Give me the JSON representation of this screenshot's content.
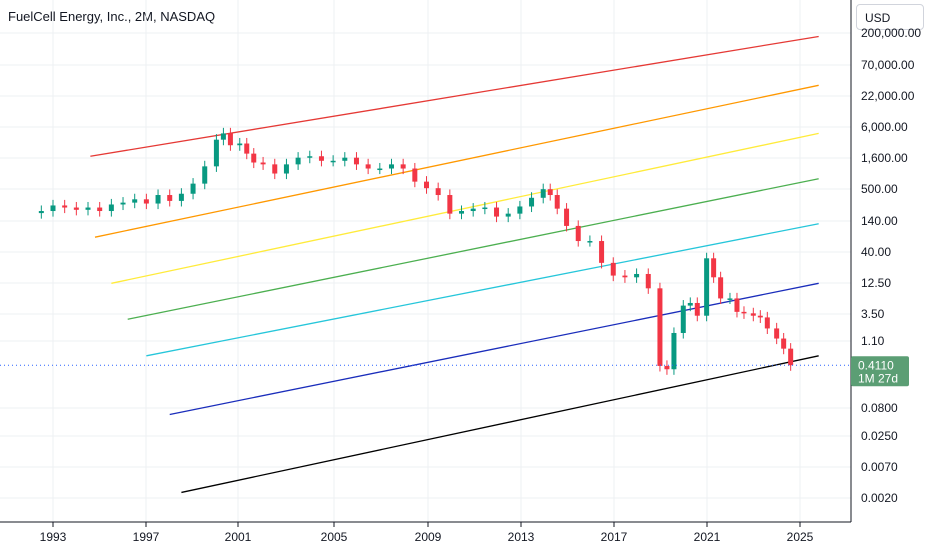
{
  "header": {
    "symbol_title": "FuelCell Energy, Inc., 2M, NASDAQ",
    "currency_label": "USD"
  },
  "colors": {
    "up": "#089981",
    "down": "#f23645",
    "candle_body_dark": "#6d1f1f",
    "last_price_tag": "#5b9e74",
    "last_price_line": "#2962ff",
    "grid": "#eef0f3",
    "axis_line": "#131722"
  },
  "chart_data": {
    "type": "candlestick",
    "scale": "log",
    "x_axis": {
      "tick_labels": [
        "1993",
        "1997",
        "2001",
        "2005",
        "2009",
        "2013",
        "2017",
        "2021",
        "2025"
      ],
      "range": [
        1991.3,
        2027.1
      ]
    },
    "y_axis": {
      "tick_labels": [
        "200,000.00",
        "70,000.00",
        "22,000.00",
        "6,000.00",
        "1,600.00",
        "500.00",
        "140.00",
        "40.00",
        "12.50",
        "3.50",
        "1.10",
        "0.0800",
        "0.0250",
        "0.0070",
        "0.0020"
      ],
      "tick_values": [
        200000,
        70000,
        22000,
        6000,
        1600,
        500,
        140,
        40,
        12.5,
        3.5,
        1.1,
        0.08,
        0.025,
        0.007,
        0.002
      ]
    },
    "last_price": {
      "value": 0.411,
      "label": "0.4110",
      "countdown": "1M 27d"
    },
    "channel_lines": [
      {
        "color": "#e53935",
        "x": [
          1994.6,
          2025.8
        ],
        "y": [
          1800,
          220000
        ]
      },
      {
        "color": "#ff9800",
        "x": [
          1994.8,
          2025.8
        ],
        "y": [
          70,
          31000
        ]
      },
      {
        "color": "#ffeb3b",
        "x": [
          1995.5,
          2025.8
        ],
        "y": [
          11,
          4500
        ]
      },
      {
        "color": "#4caf50",
        "x": [
          1996.2,
          2025.8
        ],
        "y": [
          2.6,
          730
        ]
      },
      {
        "color": "#26c6da",
        "x": [
          1997.0,
          2025.8
        ],
        "y": [
          0.6,
          120
        ]
      },
      {
        "color": "#1a2dbb",
        "x": [
          1998.0,
          2025.8
        ],
        "y": [
          0.057,
          11
        ]
      },
      {
        "color": "#000000",
        "x": [
          1998.5,
          2025.8
        ],
        "y": [
          0.0025,
          0.6
        ]
      }
    ],
    "candles_t": [
      1992.5,
      1993.0,
      1993.5,
      1994.0,
      1994.5,
      1995.0,
      1995.5,
      1996.0,
      1996.5,
      1997.0,
      1997.5,
      1998.0,
      1998.5,
      1999.0,
      1999.5,
      2000.0,
      2000.3,
      2000.6,
      2001.0,
      2001.3,
      2001.6,
      2002.0,
      2002.5,
      2003.0,
      2003.5,
      2004.0,
      2004.5,
      2005.0,
      2005.5,
      2006.0,
      2006.5,
      2007.0,
      2007.5,
      2008.0,
      2008.5,
      2009.0,
      2009.5,
      2010.0,
      2010.5,
      2011.0,
      2011.5,
      2012.0,
      2012.5,
      2013.0,
      2013.5,
      2014.0,
      2014.3,
      2014.6,
      2015.0,
      2015.5,
      2016.0,
      2016.5,
      2017.0,
      2017.5,
      2018.0,
      2018.5,
      2019.0,
      2019.3,
      2019.6,
      2020.0,
      2020.3,
      2020.6,
      2021.0,
      2021.3,
      2021.6,
      2022.0,
      2022.3,
      2022.6,
      2023.0,
      2023.3,
      2023.6,
      2024.0,
      2024.3,
      2024.6
    ],
    "candles_close": [
      200,
      250,
      230,
      210,
      230,
      200,
      260,
      280,
      320,
      270,
      380,
      300,
      400,
      600,
      1200,
      3500,
      4500,
      2800,
      3000,
      2000,
      1400,
      1300,
      900,
      1300,
      1700,
      1800,
      1500,
      1500,
      1700,
      1300,
      1100,
      1100,
      1300,
      1100,
      650,
      500,
      380,
      180,
      200,
      220,
      230,
      160,
      180,
      240,
      340,
      480,
      380,
      220,
      110,
      60,
      60,
      25,
      15,
      14,
      16,
      9,
      0.4,
      0.35,
      1.5,
      4.5,
      5,
      3,
      30,
      14,
      6,
      6,
      3.5,
      3.3,
      3,
      2.8,
      1.8,
      1.2,
      0.8,
      0.411
    ]
  }
}
